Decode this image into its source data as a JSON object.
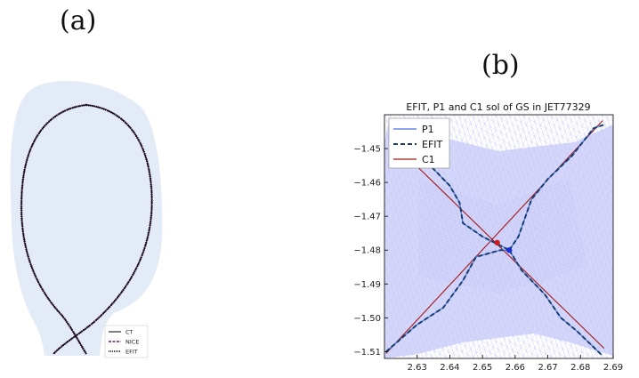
{
  "panels": {
    "a_label": "(a)",
    "b_label": "(b)"
  },
  "chart_data": [
    {
      "type": "line",
      "panel": "a",
      "title": "",
      "series": [
        {
          "name": "CT",
          "style": "solid",
          "color": "#000000"
        },
        {
          "name": "NICE",
          "style": "dashed",
          "color": "#5a1a6e"
        },
        {
          "name": "EFIT",
          "style": "dotted",
          "color": "#000000"
        }
      ],
      "legend_position": "bottom-right",
      "background_region_color": "#e3ecf6"
    },
    {
      "type": "line",
      "panel": "b",
      "title": "EFIT, P1 and C1 sol of GS in JET77329",
      "xlim": [
        2.62,
        2.69
      ],
      "ylim": [
        -1.512,
        -1.44
      ],
      "xticks": [
        "2.63",
        "2.64",
        "2.65",
        "2.66",
        "2.67",
        "2.68",
        "2.69"
      ],
      "yticks": [
        "-1.45",
        "-1.46",
        "-1.47",
        "-1.48",
        "-1.49",
        "-1.50",
        "-1.51"
      ],
      "grid": false,
      "legend_position": "top-left",
      "series": [
        {
          "name": "P1",
          "color": "#4a6fd6",
          "style": "solid"
        },
        {
          "name": "EFIT",
          "color": "#153e6e",
          "style": "dashed"
        },
        {
          "name": "C1",
          "color": "#a01818",
          "style": "solid"
        }
      ],
      "c1_lines": [
        {
          "x": [
            2.6205,
            2.6868
          ],
          "y": [
            -1.5105,
            -1.4417
          ]
        },
        {
          "x": [
            2.6228,
            2.6872
          ],
          "y": [
            -1.4485,
            -1.509
          ]
        }
      ],
      "efit_branches": [
        {
          "x": [
            2.6205,
            2.63,
            2.638,
            2.644,
            2.648,
            2.6555,
            2.6582
          ],
          "y": [
            -1.51,
            -1.502,
            -1.497,
            -1.489,
            -1.482,
            -1.48,
            -1.48
          ]
        },
        {
          "x": [
            2.6582,
            2.662,
            2.669,
            2.674,
            2.679,
            2.6865
          ],
          "y": [
            -1.48,
            -1.486,
            -1.493,
            -1.5,
            -1.504,
            -1.511
          ]
        },
        {
          "x": [
            2.624,
            2.635,
            2.64,
            2.643,
            2.644,
            2.65,
            2.6582
          ],
          "y": [
            -1.445,
            -1.456,
            -1.461,
            -1.466,
            -1.472,
            -1.476,
            -1.48
          ]
        },
        {
          "x": [
            2.6582,
            2.661,
            2.665,
            2.67,
            2.6775,
            2.684,
            2.687
          ],
          "y": [
            -1.48,
            -1.476,
            -1.465,
            -1.459,
            -1.452,
            -1.444,
            -1.443
          ]
        }
      ],
      "markers": [
        {
          "name": "red-marker",
          "x": 2.6545,
          "y": -1.4778,
          "color": "#c81e1e"
        },
        {
          "name": "blue-marker",
          "x": 2.6582,
          "y": -1.48,
          "color": "#1c2fd0"
        }
      ],
      "mesh_color": "#c6c8f8"
    }
  ]
}
